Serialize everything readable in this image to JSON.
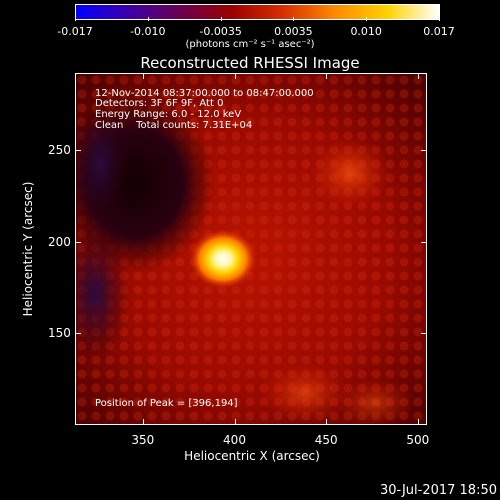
{
  "colorbar": {
    "tick_labels": [
      "-0.017",
      "-0.010",
      "-0.0035",
      "0.0035",
      "0.010",
      "0.017"
    ],
    "units_text": "(photons cm⁻² s⁻¹ asec⁻²)",
    "colors": [
      "#0000ff",
      "#3a00a8",
      "#6a0050",
      "#9a0000",
      "#d83000",
      "#ff8a00",
      "#ffd200",
      "#ffffff"
    ]
  },
  "title": "Reconstructed RHESSI Image",
  "info": {
    "time_range": "12-Nov-2014 08:37:00.000 to 08:47:00.000",
    "detectors": "Detectors: 3F 6F 9F, Att 0",
    "energy": "Energy Range: 6.0 - 12.0 keV",
    "clean": "Clean    Total counts: 7.31E+04",
    "peak": "Position of Peak = [396,194]"
  },
  "axes": {
    "x_title": "Heliocentric X (arcsec)",
    "y_title": "Heliocentric Y (arcsec)",
    "x_ticks": [
      "350",
      "400",
      "450",
      "500"
    ],
    "y_ticks": [
      "250",
      "200",
      "150"
    ],
    "xlim": [
      313,
      505
    ],
    "ylim": [
      100,
      292
    ]
  },
  "image": {
    "peak_position": [
      396,
      194
    ]
  },
  "date_stamp": "30-Jul-2017 18:50"
}
